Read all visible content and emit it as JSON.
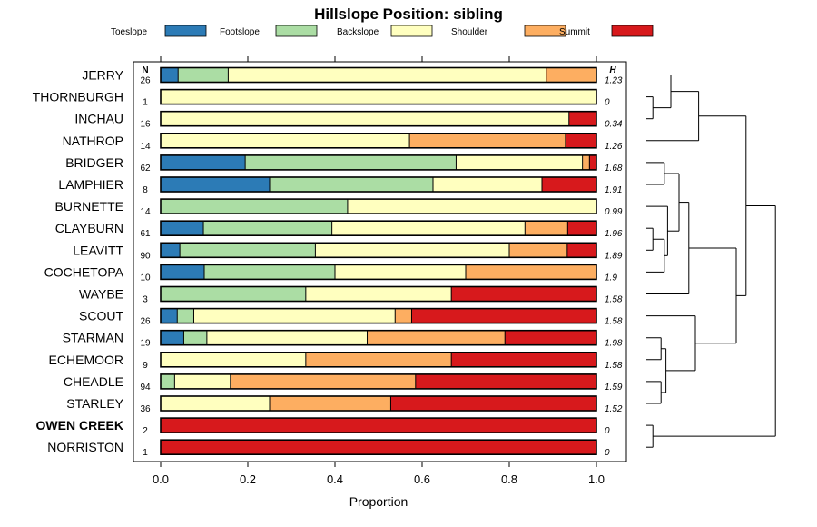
{
  "chart_data": {
    "type": "bar",
    "stacked": true,
    "orientation": "horizontal",
    "title": "Hillslope Position: sibling",
    "xlabel": "Proportion",
    "ylabel": "",
    "xlim": [
      0,
      1
    ],
    "x_ticks": [
      "0.0",
      "0.2",
      "0.4",
      "0.6",
      "0.8",
      "1.0"
    ],
    "x_tick_values": [
      0,
      0.2,
      0.4,
      0.6,
      0.8,
      1.0
    ],
    "n_header": "N",
    "h_header": "H",
    "legend_position": "top",
    "legend": [
      {
        "name": "Toeslope",
        "color": "#2c7bb6"
      },
      {
        "name": "Footslope",
        "color": "#abdda4"
      },
      {
        "name": "Backslope",
        "color": "#ffffbf"
      },
      {
        "name": "Shoulder",
        "color": "#fdae61"
      },
      {
        "name": "Summit",
        "color": "#d7191c"
      }
    ],
    "rows": [
      {
        "name": "JERRY",
        "n": "26",
        "h": "1.23",
        "bold": false,
        "values": [
          0.04,
          0.115,
          0.73,
          0.115,
          0.0
        ]
      },
      {
        "name": "THORNBURGH",
        "n": "1",
        "h": "0",
        "bold": false,
        "values": [
          0,
          0,
          1.0,
          0,
          0
        ]
      },
      {
        "name": "INCHAU",
        "n": "16",
        "h": "0.34",
        "bold": false,
        "values": [
          0,
          0,
          0.937,
          0,
          0.063
        ]
      },
      {
        "name": "NATHROP",
        "n": "14",
        "h": "1.26",
        "bold": false,
        "values": [
          0,
          0,
          0.571,
          0.358,
          0.071
        ]
      },
      {
        "name": "BRIDGER",
        "n": "62",
        "h": "1.68",
        "bold": false,
        "values": [
          0.194,
          0.484,
          0.29,
          0.016,
          0.016
        ]
      },
      {
        "name": "LAMPHIER",
        "n": "8",
        "h": "1.91",
        "bold": false,
        "values": [
          0.25,
          0.375,
          0.25,
          0,
          0.125
        ]
      },
      {
        "name": "BURNETTE",
        "n": "14",
        "h": "0.99",
        "bold": false,
        "values": [
          0,
          0.429,
          0.571,
          0,
          0
        ]
      },
      {
        "name": "CLAYBURN",
        "n": "61",
        "h": "1.96",
        "bold": false,
        "values": [
          0.098,
          0.295,
          0.443,
          0.098,
          0.066
        ]
      },
      {
        "name": "LEAVITT",
        "n": "90",
        "h": "1.89",
        "bold": false,
        "values": [
          0.044,
          0.311,
          0.445,
          0.133,
          0.067
        ]
      },
      {
        "name": "COCHETOPA",
        "n": "10",
        "h": "1.9",
        "bold": false,
        "values": [
          0.1,
          0.3,
          0.3,
          0.3,
          0
        ]
      },
      {
        "name": "WAYBE",
        "n": "3",
        "h": "1.58",
        "bold": false,
        "values": [
          0,
          0.333,
          0.334,
          0,
          0.333
        ]
      },
      {
        "name": "SCOUT",
        "n": "26",
        "h": "1.58",
        "bold": false,
        "values": [
          0.038,
          0.038,
          0.462,
          0.038,
          0.424
        ]
      },
      {
        "name": "STARMAN",
        "n": "19",
        "h": "1.98",
        "bold": false,
        "values": [
          0.053,
          0.053,
          0.368,
          0.316,
          0.21
        ]
      },
      {
        "name": "ECHEMOOR",
        "n": "9",
        "h": "1.58",
        "bold": false,
        "values": [
          0,
          0,
          0.333,
          0.334,
          0.333
        ]
      },
      {
        "name": "CHEADLE",
        "n": "94",
        "h": "1.59",
        "bold": false,
        "values": [
          0,
          0.032,
          0.128,
          0.425,
          0.415
        ]
      },
      {
        "name": "STARLEY",
        "n": "36",
        "h": "1.52",
        "bold": false,
        "values": [
          0,
          0,
          0.25,
          0.278,
          0.472
        ]
      },
      {
        "name": "OWEN CREEK",
        "n": "2",
        "h": "0",
        "bold": true,
        "values": [
          0,
          0,
          0,
          0,
          1.0
        ]
      },
      {
        "name": "NORRISTON",
        "n": "1",
        "h": "0",
        "bold": false,
        "values": [
          0,
          0,
          0,
          0,
          1.0
        ]
      }
    ],
    "dendrogram": {
      "leaf_order": [
        "JERRY",
        "THORNBURGH",
        "INCHAU",
        "NATHROP",
        "BRIDGER",
        "LAMPHIER",
        "BURNETTE",
        "CLAYBURN",
        "LEAVITT",
        "COCHETOPA",
        "WAYBE",
        "SCOUT",
        "STARMAN",
        "ECHEMOOR",
        "CHEADLE",
        "STARLEY",
        "OWEN CREEK",
        "NORRISTON"
      ],
      "merges": [
        {
          "a": "L1",
          "b": "L2",
          "h": 0.04
        },
        {
          "a": "L16",
          "b": "L17",
          "h": 0.04
        },
        {
          "a": "L7",
          "b": "L8",
          "h": 0.04
        },
        {
          "a": "M0",
          "b": "L0",
          "h": 0.15
        },
        {
          "a": "L12",
          "b": "L13",
          "h": 0.09
        },
        {
          "a": "M2",
          "b": "L9",
          "h": 0.11
        },
        {
          "a": "L14",
          "b": "L15",
          "h": 0.09
        },
        {
          "a": "L4",
          "b": "L5",
          "h": 0.11
        },
        {
          "a": "M5",
          "b": "L6",
          "h": 0.13
        },
        {
          "a": "M4",
          "b": "M6",
          "h": 0.12
        },
        {
          "a": "M3",
          "b": "L3",
          "h": 0.32
        },
        {
          "a": "M7",
          "b": "M8",
          "h": 0.2
        },
        {
          "a": "L11",
          "b": "M9",
          "h": 0.3
        },
        {
          "a": "M11",
          "b": "L10",
          "h": 0.26
        },
        {
          "a": "M13",
          "b": "M12",
          "h": 0.55
        },
        {
          "a": "M10",
          "b": "M14",
          "h": 0.61
        },
        {
          "a": "M15",
          "b": "M1",
          "h": 0.79
        }
      ]
    }
  }
}
